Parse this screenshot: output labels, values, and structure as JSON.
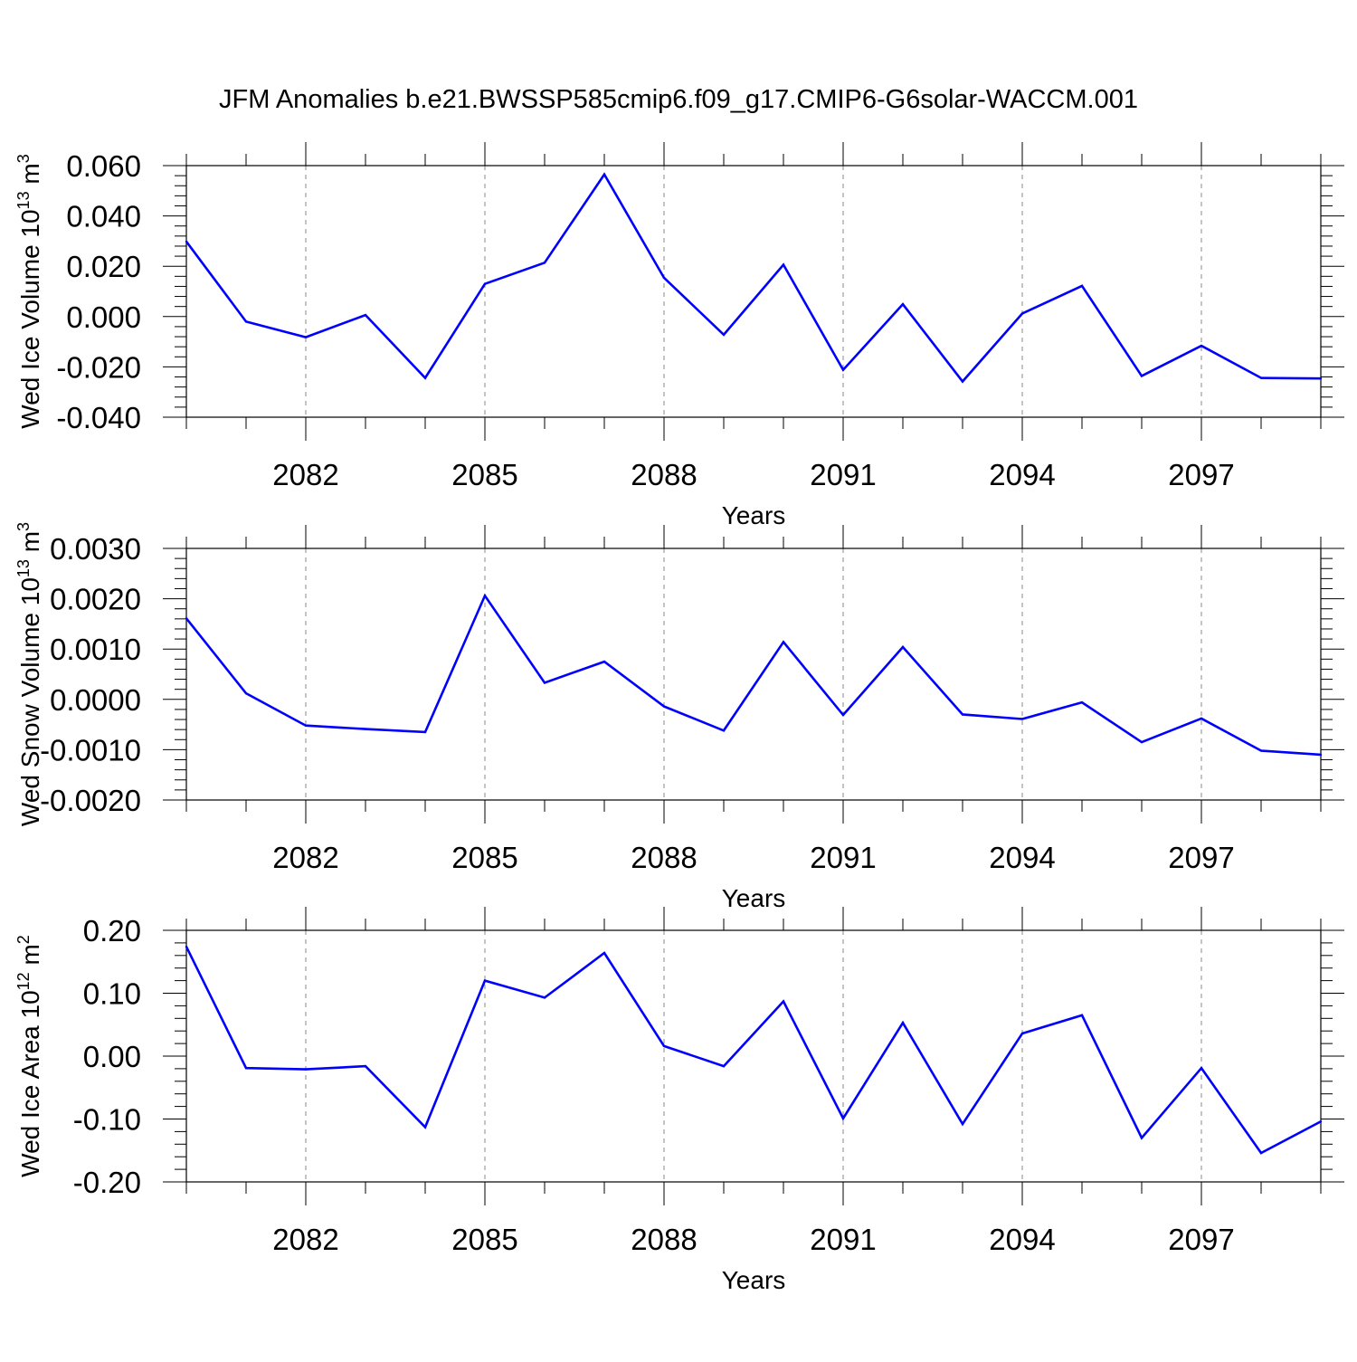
{
  "title": "JFM Anomalies b.e21.BWSSP585cmip6.f09_g17.CMIP6-G6solar-WACCM.001",
  "colors": {
    "line": "#0000ff",
    "axis": "#000000",
    "grid": "#888888"
  },
  "chart_data": [
    {
      "type": "line",
      "title": "JFM Anomalies b.e21.BWSSP585cmip6.f09_g17.CMIP6-G6solar-WACCM.001",
      "xlabel": "Years",
      "ylabel": {
        "main": "Wed Ice Volume 10",
        "sup": "13",
        "unit": " m",
        "unit_sup": "3"
      },
      "xlim": [
        2080,
        2099
      ],
      "ylim": [
        -0.04,
        0.06
      ],
      "yticks": [
        -0.04,
        -0.02,
        0.0,
        0.02,
        0.04,
        0.06
      ],
      "ytick_labels": [
        "-0.040",
        "-0.020",
        "0.000",
        "0.020",
        "0.040",
        "0.060"
      ],
      "xticks": [
        2082,
        2085,
        2088,
        2091,
        2094,
        2097
      ],
      "xtick_labels": [
        "2082",
        "2085",
        "2088",
        "2091",
        "2094",
        "2097"
      ],
      "grid": "vertical dashed at labeled years",
      "series": [
        {
          "name": "Wed Ice Volume",
          "x": [
            2080,
            2081,
            2082,
            2083,
            2084,
            2085,
            2086,
            2087,
            2088,
            2089,
            2090,
            2091,
            2092,
            2093,
            2094,
            2095,
            2096,
            2097,
            2098,
            2099
          ],
          "values": [
            0.0298,
            -0.002,
            -0.0082,
            0.0006,
            -0.0244,
            0.013,
            0.0214,
            0.0565,
            0.0154,
            -0.0072,
            0.0206,
            -0.0212,
            0.0049,
            -0.0258,
            0.0012,
            0.0122,
            -0.0236,
            -0.0116,
            -0.0244,
            -0.0246
          ]
        }
      ]
    },
    {
      "type": "line",
      "xlabel": "Years",
      "ylabel": {
        "main": "Wed Snow Volume 10",
        "sup": "13",
        "unit": " m",
        "unit_sup": "3"
      },
      "xlim": [
        2080,
        2099
      ],
      "ylim": [
        -0.002,
        0.003
      ],
      "yticks": [
        -0.002,
        -0.001,
        0.0,
        0.001,
        0.002,
        0.003
      ],
      "ytick_labels": [
        "-0.0020",
        "-0.0010",
        "0.0000",
        "0.0010",
        "0.0020",
        "0.0030"
      ],
      "xticks": [
        2082,
        2085,
        2088,
        2091,
        2094,
        2097
      ],
      "xtick_labels": [
        "2082",
        "2085",
        "2088",
        "2091",
        "2094",
        "2097"
      ],
      "grid": "vertical dashed at labeled years",
      "series": [
        {
          "name": "Wed Snow Volume",
          "x": [
            2080,
            2081,
            2082,
            2083,
            2084,
            2085,
            2086,
            2087,
            2088,
            2089,
            2090,
            2091,
            2092,
            2093,
            2094,
            2095,
            2096,
            2097,
            2098,
            2099
          ],
          "values": [
            0.00161,
            0.00012,
            -0.00052,
            -0.00059,
            -0.00065,
            0.00206,
            0.00033,
            0.00075,
            -0.00014,
            -0.00062,
            0.00114,
            -0.00031,
            0.00104,
            -0.0003,
            -0.00039,
            -6e-05,
            -0.00085,
            -0.00038,
            -0.00102,
            -0.0011
          ]
        }
      ]
    },
    {
      "type": "line",
      "xlabel": "Years",
      "ylabel": {
        "main": "Wed Ice Area 10",
        "sup": "12",
        "unit": " m",
        "unit_sup": "2"
      },
      "xlim": [
        2080,
        2099
      ],
      "ylim": [
        -0.2,
        0.2
      ],
      "yticks": [
        -0.2,
        -0.1,
        0.0,
        0.1,
        0.2
      ],
      "ytick_labels": [
        "-0.20",
        "-0.10",
        "0.00",
        "0.10",
        "0.20"
      ],
      "xticks": [
        2082,
        2085,
        2088,
        2091,
        2094,
        2097
      ],
      "xtick_labels": [
        "2082",
        "2085",
        "2088",
        "2091",
        "2094",
        "2097"
      ],
      "grid": "vertical dashed at labeled years",
      "series": [
        {
          "name": "Wed Ice Area",
          "x": [
            2080,
            2081,
            2082,
            2083,
            2084,
            2085,
            2086,
            2087,
            2088,
            2089,
            2090,
            2091,
            2092,
            2093,
            2094,
            2095,
            2096,
            2097,
            2098,
            2099
          ],
          "values": [
            0.174,
            -0.019,
            -0.021,
            -0.016,
            -0.113,
            0.12,
            0.093,
            0.164,
            0.016,
            -0.016,
            0.087,
            -0.099,
            0.053,
            -0.108,
            0.036,
            0.065,
            -0.13,
            -0.019,
            -0.154,
            -0.104
          ]
        }
      ]
    }
  ]
}
